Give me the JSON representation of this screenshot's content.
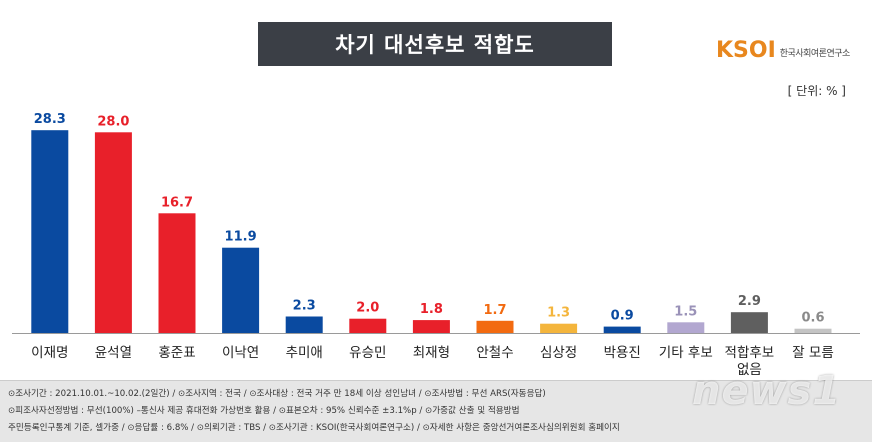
{
  "header": {
    "title": "차기 대선후보 적합도",
    "logo_mark": "KSOI",
    "logo_text": "한국사회여론연구소",
    "unit": "[ 단위: % ]"
  },
  "colors": {
    "blue": "#0a4aa0",
    "red": "#e8202a",
    "orange": "#f26a10",
    "yellow": "#f4b53c",
    "lavender": "#b2a7d0",
    "gray": "#5f5f5f",
    "light_gray": "#c4c4c4"
  },
  "chart_data": {
    "type": "bar",
    "title": "차기 대선후보 적합도",
    "categories": [
      "이재명",
      "윤석열",
      "홍준표",
      "이낙연",
      "추미애",
      "유승민",
      "최재형",
      "안철수",
      "심상정",
      "박용진",
      "기타 후보",
      "적합후보\n없음",
      "잘 모름"
    ],
    "values": [
      28.3,
      28.0,
      16.7,
      11.9,
      2.3,
      2.0,
      1.8,
      1.7,
      1.3,
      0.9,
      1.5,
      2.9,
      0.6
    ],
    "labels": [
      "28.3",
      "28.0",
      "16.7",
      "11.9",
      "2.3",
      "2.0",
      "1.8",
      "1.7",
      "1.3",
      "0.9",
      "1.5",
      "2.9",
      "0.6"
    ],
    "bar_colors": [
      "blue",
      "red",
      "red",
      "blue",
      "blue",
      "red",
      "red",
      "orange",
      "yellow",
      "blue",
      "lavender",
      "gray",
      "light_gray"
    ],
    "unit": "%",
    "ylim": [
      0,
      30
    ],
    "grid": false
  },
  "footer": {
    "line1": "⊙조사기간 : 2021.10.01.~10.02.(2일간)  / ⊙조사지역 : 전국 / ⊙조사대상 : 전국 거주 만 18세 이상 성인남녀 / ⊙조사방법 : 무선 ARS(자동응답)",
    "line2": "⊙피조사자선정방법 : 무선(100%) –통신사 제공 휴대전화 가상번호 활용 / ⊙표본오차 : 95% 신뢰수준 ±3.1%p / ⊙가중값 산출 및 적용방법",
    "line3": "주민등록인구통계 기준, 셀가중 / ⊙응답률 : 6.8% / ⊙의뢰기관 : TBS / ⊙조사기관 : KSOI(한국사회여론연구소) / ⊙자세한 사항은 중앙선거여론조사심의위원회 홈페이지",
    "watermark": "news1"
  }
}
